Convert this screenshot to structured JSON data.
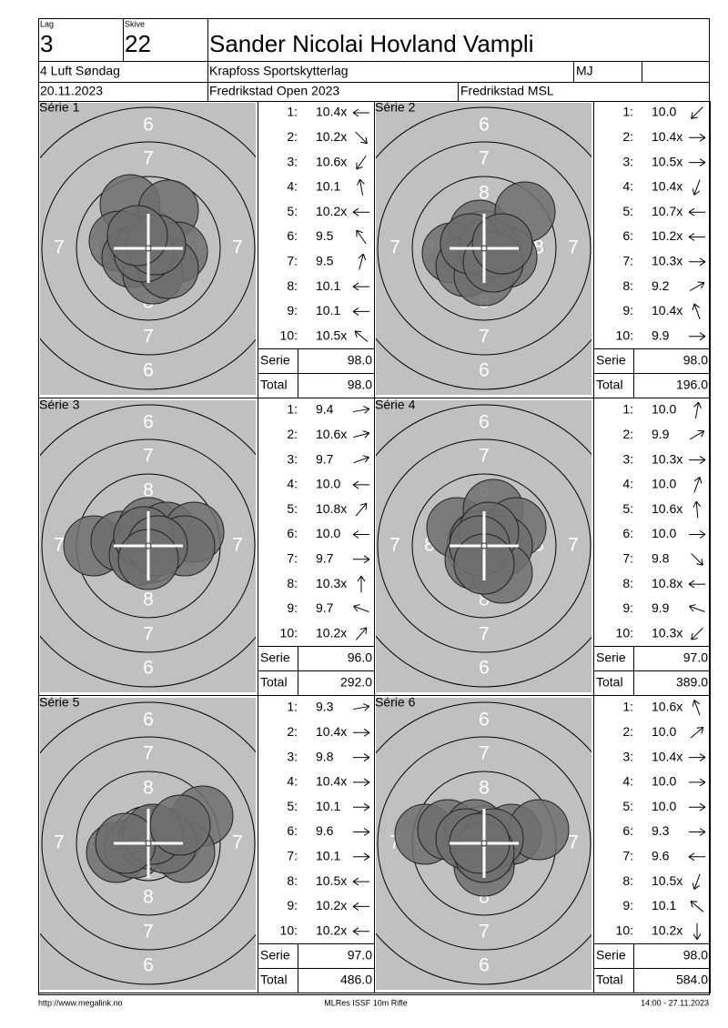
{
  "header": {
    "lag_label": "Lag",
    "lag": "3",
    "skive_label": "Skive",
    "skive": "22",
    "name": "Sander Nicolai Hovland Vampli",
    "class": "4 Luft Søndag",
    "club": "Krapfoss Sportskytterlag",
    "club_code": "MJ",
    "date": "20.11.2023",
    "competition": "Fredrikstad Open 2023",
    "venue": "Fredrikstad MSL"
  },
  "ring_labels": [
    "6",
    "7",
    "8"
  ],
  "shot_labels": [
    "1:",
    "2:",
    "3:",
    "4:",
    "5:",
    "6:",
    "7:",
    "8:",
    "9:",
    "10:"
  ],
  "serie_label": "Serie",
  "total_label": "Total",
  "series": [
    {
      "name": "Série 1",
      "shots": [
        "10.4x",
        "10.2x",
        "10.6x",
        "10.1",
        "10.2x",
        "9.5",
        "9.5",
        "10.1",
        "10.1",
        "10.5x"
      ],
      "serie": "98.0",
      "total": "98.0"
    },
    {
      "name": "Série 2",
      "shots": [
        "10.0",
        "10.4x",
        "10.5x",
        "10.4x",
        "10.7x",
        "10.2x",
        "10.3x",
        "9.2",
        "10.4x",
        "9.9"
      ],
      "serie": "98.0",
      "total": "196.0"
    },
    {
      "name": "Série 3",
      "shots": [
        "9.4",
        "10.6x",
        "9.7",
        "10.0",
        "10.8x",
        "10.0",
        "9.7",
        "10.3x",
        "9.7",
        "10.2x"
      ],
      "serie": "96.0",
      "total": "292.0"
    },
    {
      "name": "Série 4",
      "shots": [
        "10.0",
        "9.9",
        "10.3x",
        "10.0",
        "10.6x",
        "10.0",
        "9.8",
        "10.8x",
        "9.9",
        "10.3x"
      ],
      "serie": "97.0",
      "total": "389.0"
    },
    {
      "name": "Série 5",
      "shots": [
        "9.3",
        "10.4x",
        "9.8",
        "10.4x",
        "10.1",
        "9.6",
        "10.1",
        "10.5x",
        "10.2x",
        "10.2x"
      ],
      "serie": "97.0",
      "total": "486.0"
    },
    {
      "name": "Série 6",
      "shots": [
        "10.6x",
        "10.0",
        "10.4x",
        "10.0",
        "10.0",
        "9.3",
        "9.6",
        "10.5x",
        "10.1",
        "10.2x"
      ],
      "serie": "98.0",
      "total": "584.0"
    }
  ],
  "footer": {
    "url": "http://www.megalink.no",
    "program": "MLRes ISSF 10m Rifle",
    "timestamp": "14:00 - 27.11.2023"
  }
}
